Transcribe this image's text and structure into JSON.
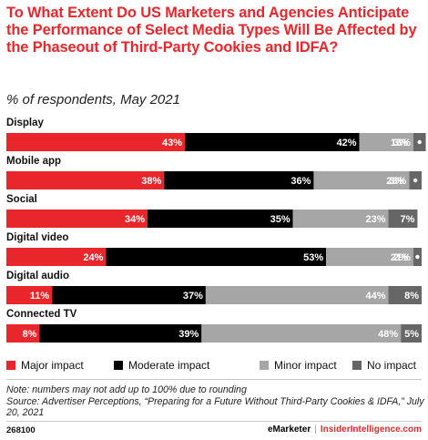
{
  "chart_data": {
    "type": "bar",
    "orientation": "horizontal",
    "stacked": true,
    "title": "To What Extent Do US Marketers and Agencies Anticipate the Performance of Select Media Types Will Be Affected by the Phaseout of Third-Party Cookies and IDFA?",
    "subtitle": "% of respondents, May 2021",
    "xlabel": "",
    "ylabel": "",
    "xlim": [
      0,
      100
    ],
    "grid": false,
    "legend_position": "bottom",
    "categories": [
      "Display",
      "Mobile app",
      "Social",
      "Digital video",
      "Digital audio",
      "Connected TV"
    ],
    "series": [
      {
        "name": "Major impact",
        "color": "#e8262b",
        "values": [
          43,
          38,
          34,
          24,
          11,
          8
        ]
      },
      {
        "name": "Moderate impact",
        "color": "#000000",
        "values": [
          42,
          36,
          35,
          53,
          37,
          39
        ]
      },
      {
        "name": "Minor impact",
        "color": "#a6a6a6",
        "values": [
          13,
          23,
          23,
          21,
          44,
          48
        ]
      },
      {
        "name": "No impact",
        "color": "#666666",
        "values": [
          3,
          3,
          7,
          2,
          8,
          5
        ]
      }
    ]
  },
  "note": "Note: numbers may not add up to 100% due to rounding",
  "source": "Source: Advertiser Perceptions, “Preparing for a Future Without Third-Party Cookies & IDFA,” July 20, 2021",
  "footer": {
    "id": "268100",
    "brand_left": "eMarketer",
    "separator": "|",
    "brand_right": "InsiderIntelligence.com"
  }
}
